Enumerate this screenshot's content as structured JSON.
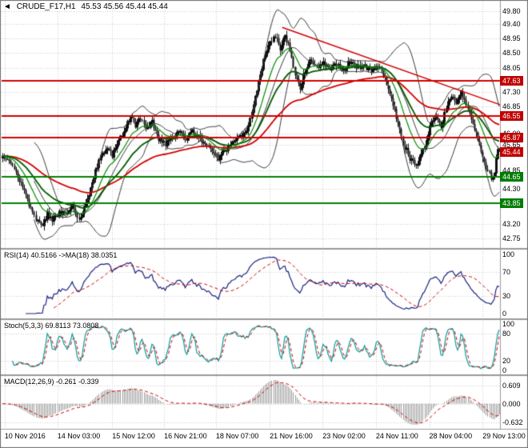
{
  "colors": {
    "level_red": "#d20000",
    "level_green": "#008000",
    "box_red": "#c00000",
    "box_green": "#007c00",
    "grid": "#c9c9c9",
    "candle": "#101010",
    "bollinger": "#3c3c3c",
    "ma_red": "#d40000",
    "ma_green_fast": "#008f00",
    "ma_green_slow": "#005a00",
    "rsi_line": "#1a237e",
    "rsi_ma": "#cc0000",
    "stoch_k": "#0b9a9a",
    "stoch_d": "#cc0000",
    "macd_hist": "#9b9b9b",
    "macd_signal": "#cc0000",
    "separator": "#9a9a9a",
    "axis_text": "#000000"
  },
  "chart_data": {
    "type": "candlestick",
    "symbol": "CRUDE_F17",
    "timeframe": "H1",
    "header": {
      "collapse_icon": "◄",
      "title": "CRUDE_F17,H1",
      "ohlc_text": "45.53 45.56 45.44 45.44"
    },
    "current_bar": {
      "open": 45.53,
      "high": 45.56,
      "low": 45.44,
      "close": 45.44
    },
    "bars": 300,
    "price_axis": {
      "min": 42.45,
      "max": 50.1,
      "ticks": [
        {
          "v": 49.8,
          "label": "49.80"
        },
        {
          "v": 49.4,
          "label": "49.40"
        },
        {
          "v": 48.95,
          "label": "48.95"
        },
        {
          "v": 48.5,
          "label": "48.50"
        },
        {
          "v": 48.05,
          "label": "48.05"
        },
        {
          "v": 47.3,
          "label": "47.30"
        },
        {
          "v": 46.85,
          "label": "46.85"
        },
        {
          "v": 46.0,
          "label": "46.00"
        },
        {
          "v": 45.65,
          "label": "45.65"
        },
        {
          "v": 44.85,
          "label": "44.85"
        },
        {
          "v": 44.3,
          "label": "44.30"
        },
        {
          "v": 43.2,
          "label": "43.20"
        },
        {
          "v": 42.75,
          "label": "42.75"
        }
      ]
    },
    "levels": [
      {
        "price": 47.63,
        "label": "47.63",
        "color": "red"
      },
      {
        "price": 46.55,
        "label": "46.55",
        "color": "red"
      },
      {
        "price": 45.87,
        "label": "45.87",
        "color": "red"
      },
      {
        "price": 44.65,
        "label": "44.65",
        "color": "green"
      },
      {
        "price": 43.85,
        "label": "43.85",
        "color": "green"
      }
    ],
    "last_price": {
      "price": 45.44,
      "label": "45.44",
      "color": "red"
    },
    "trendline": {
      "t1": 0.563,
      "p1": 49.3,
      "t2": 1.0,
      "p2": 46.9
    },
    "overlays": {
      "bollinger": {
        "period": 20,
        "dev": 2
      },
      "ma_green_fast": {
        "period": 14
      },
      "ma_green_slow": {
        "period": 34
      },
      "ma_red": {
        "period": 80
      }
    },
    "waypoints": [
      [
        0,
        45.25
      ],
      [
        4,
        45.1
      ],
      [
        8,
        44.8
      ],
      [
        12,
        44.35
      ],
      [
        16,
        43.8
      ],
      [
        20,
        43.35
      ],
      [
        24,
        43.15
      ],
      [
        27,
        43.5
      ],
      [
        30,
        43.3
      ],
      [
        34,
        43.6
      ],
      [
        38,
        43.45
      ],
      [
        42,
        43.75
      ],
      [
        46,
        43.3
      ],
      [
        50,
        43.8
      ],
      [
        54,
        44.5
      ],
      [
        58,
        45.15
      ],
      [
        62,
        45.55
      ],
      [
        66,
        45.35
      ],
      [
        70,
        45.8
      ],
      [
        74,
        46.2
      ],
      [
        77,
        46.55
      ],
      [
        80,
        46.25
      ],
      [
        83,
        46.5
      ],
      [
        86,
        46.1
      ],
      [
        90,
        46.35
      ],
      [
        94,
        45.85
      ],
      [
        98,
        45.65
      ],
      [
        102,
        45.9
      ],
      [
        106,
        46.1
      ],
      [
        110,
        45.8
      ],
      [
        114,
        46.05
      ],
      [
        118,
        45.9
      ],
      [
        122,
        45.7
      ],
      [
        126,
        45.45
      ],
      [
        130,
        45.2
      ],
      [
        134,
        45.5
      ],
      [
        138,
        45.7
      ],
      [
        142,
        45.85
      ],
      [
        146,
        46.0
      ],
      [
        149,
        46.45
      ],
      [
        152,
        47.1
      ],
      [
        155,
        47.8
      ],
      [
        158,
        48.45
      ],
      [
        161,
        48.85
      ],
      [
        164,
        49.0
      ],
      [
        167,
        48.65
      ],
      [
        170,
        49.05
      ],
      [
        173,
        48.6
      ],
      [
        176,
        47.75
      ],
      [
        179,
        47.45
      ],
      [
        182,
        47.95
      ],
      [
        185,
        48.3
      ],
      [
        189,
        48.05
      ],
      [
        193,
        48.2
      ],
      [
        197,
        48.0
      ],
      [
        201,
        48.15
      ],
      [
        205,
        47.95
      ],
      [
        209,
        48.25
      ],
      [
        213,
        48.05
      ],
      [
        217,
        48.15
      ],
      [
        221,
        47.95
      ],
      [
        225,
        48.1
      ],
      [
        229,
        47.85
      ],
      [
        233,
        47.3
      ],
      [
        237,
        46.5
      ],
      [
        241,
        45.7
      ],
      [
        245,
        45.25
      ],
      [
        249,
        45.0
      ],
      [
        252,
        45.3
      ],
      [
        255,
        45.85
      ],
      [
        258,
        46.35
      ],
      [
        261,
        46.55
      ],
      [
        264,
        46.25
      ],
      [
        267,
        46.8
      ],
      [
        270,
        47.2
      ],
      [
        273,
        47.0
      ],
      [
        276,
        47.3
      ],
      [
        279,
        46.95
      ],
      [
        282,
        46.5
      ],
      [
        285,
        46.0
      ],
      [
        288,
        45.4
      ],
      [
        291,
        44.95
      ],
      [
        294,
        44.6
      ],
      [
        296,
        44.85
      ],
      [
        298,
        45.5
      ],
      [
        299,
        45.44
      ]
    ],
    "x_axis": {
      "labels": [
        {
          "text": "10 Nov 2016",
          "t": 0.006
        },
        {
          "text": "14 Nov 03:00",
          "t": 0.112
        },
        {
          "text": "15 Nov 12:00",
          "t": 0.222
        },
        {
          "text": "16 Nov 21:00",
          "t": 0.326
        },
        {
          "text": "18 Nov 07:00",
          "t": 0.43
        },
        {
          "text": "21 Nov 16:00",
          "t": 0.538
        },
        {
          "text": "23 Nov 02:00",
          "t": 0.644
        },
        {
          "text": "24 Nov 11:00",
          "t": 0.751
        },
        {
          "text": "28 Nov 04:00",
          "t": 0.858
        },
        {
          "text": "29 Nov 13:00",
          "t": 0.965
        }
      ]
    },
    "indicators": {
      "rsi": {
        "label": "RSI(14) 40.5166 ->MA(18) 38.0351",
        "period": 14,
        "ma_period": 18,
        "value": 40.5166,
        "ma_value": 38.0351,
        "ticks": [
          {
            "v": 100,
            "label": "100"
          },
          {
            "v": 70,
            "label": "70"
          },
          {
            "v": 30,
            "label": "30"
          },
          {
            "v": 0,
            "label": "0"
          }
        ],
        "guides": [
          70,
          30
        ]
      },
      "stoch": {
        "label": "Stoch(5,3,3) 69.8113 73.0808",
        "k": 5,
        "d": 3,
        "slowing": 3,
        "value_k": 69.8113,
        "value_d": 73.0808,
        "ticks": [
          {
            "v": 100,
            "label": "100"
          },
          {
            "v": 80,
            "label": "80"
          },
          {
            "v": 20,
            "label": "20"
          },
          {
            "v": 0,
            "label": "0"
          }
        ],
        "guides": [
          80,
          20
        ]
      },
      "macd": {
        "label": "MACD(12,26,9) -0.261 -0.339",
        "fast": 12,
        "slow": 26,
        "signal": 9,
        "value_main": -0.261,
        "value_signal": -0.339,
        "ticks": [
          {
            "v": 0.609,
            "label": "0.609"
          },
          {
            "v": 0,
            "label": "0.000"
          },
          {
            "v": -0.632,
            "label": "-0.632"
          }
        ]
      }
    }
  }
}
